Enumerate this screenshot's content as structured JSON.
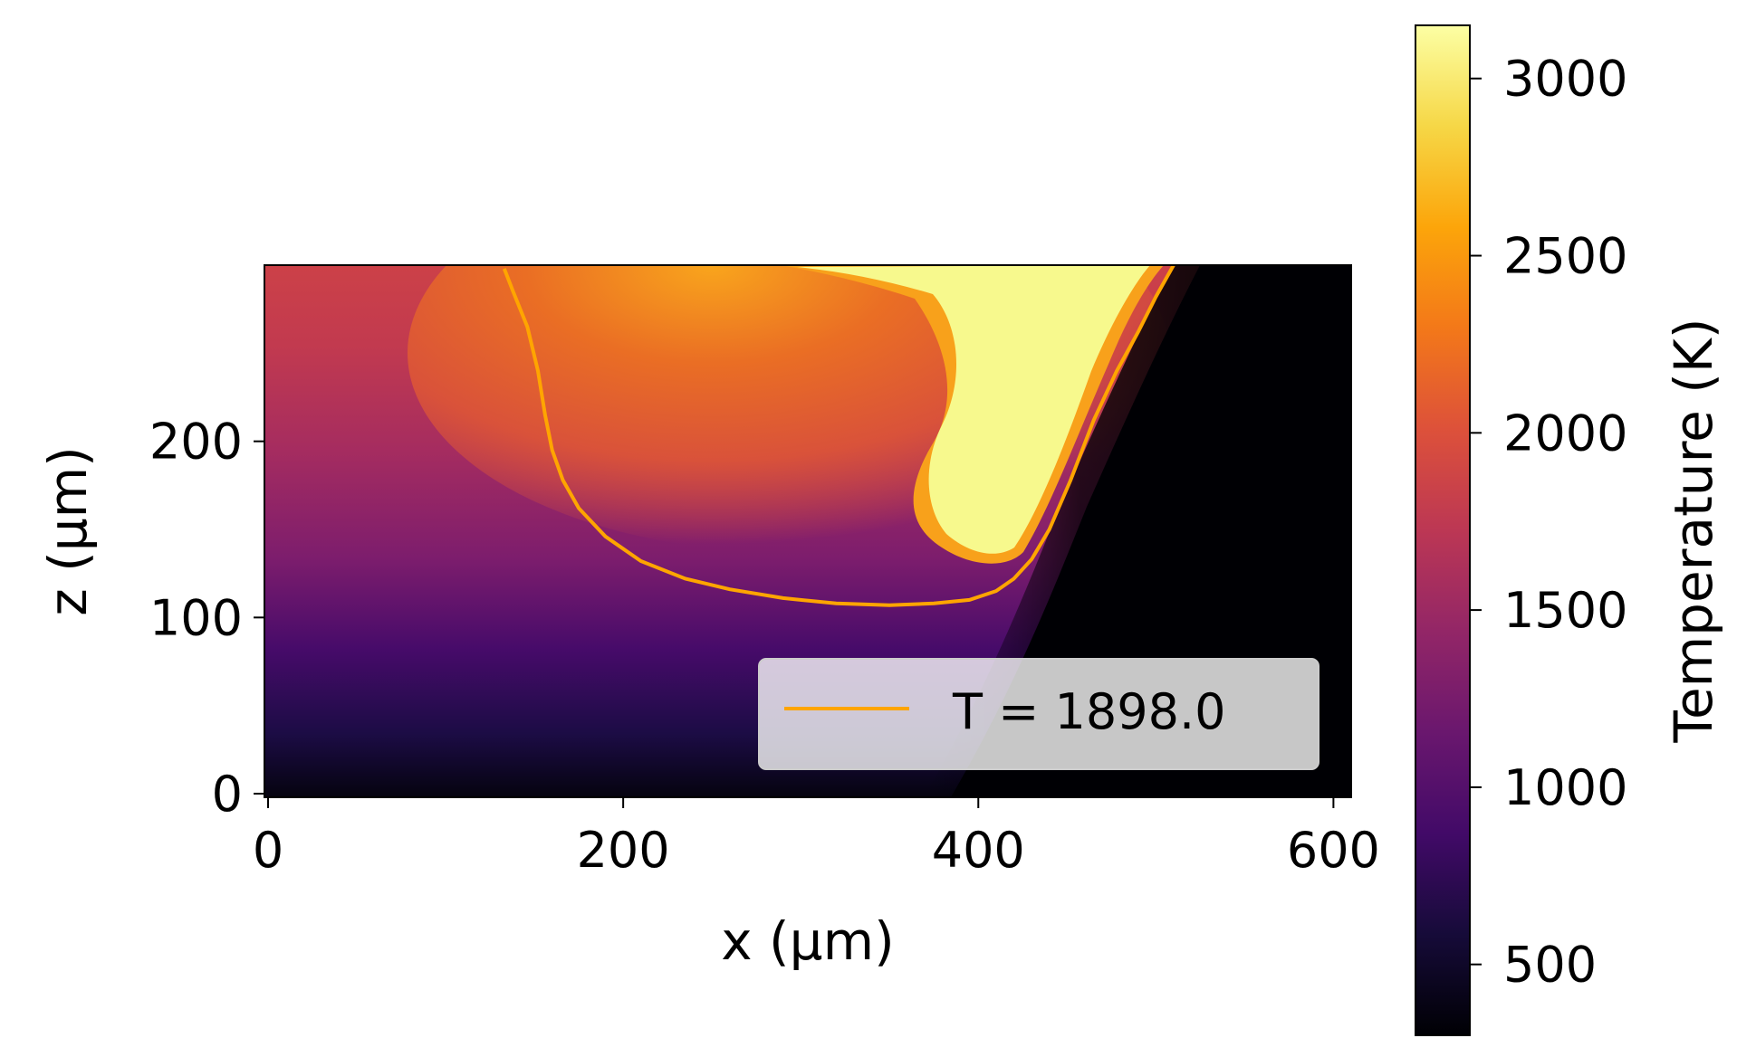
{
  "chart_data": {
    "type": "heatmap",
    "title": "",
    "xlabel": "x (μm)",
    "ylabel": "z (μm)",
    "xlim": [
      0,
      610
    ],
    "ylim": [
      0,
      300
    ],
    "x_ticks": [
      0,
      200,
      400,
      600
    ],
    "y_ticks": [
      0,
      100,
      200
    ],
    "colormap": "inferno",
    "colorbar": {
      "label": "Temperature (K)",
      "range": [
        300,
        3150
      ],
      "ticks": [
        500,
        1000,
        1500,
        2000,
        2500,
        3000
      ]
    },
    "series": [
      {
        "name": "T = 1898.0",
        "kind": "contour",
        "level": 1898.0,
        "color": "#FFA500",
        "x": [
          133,
          138,
          146,
          152,
          156,
          160,
          166,
          175,
          190,
          210,
          235,
          260,
          290,
          320,
          350,
          375,
          395,
          410,
          420,
          430,
          440,
          452,
          465,
          478,
          490,
          500,
          510
        ],
        "y": [
          298,
          285,
          265,
          240,
          215,
          195,
          178,
          162,
          146,
          132,
          122,
          116,
          111,
          108,
          107,
          108,
          110,
          115,
          122,
          133,
          150,
          178,
          212,
          240,
          262,
          282,
          300
        ]
      }
    ],
    "legend": {
      "position": "lower-right",
      "entries": [
        "T = 1898.0"
      ]
    },
    "grid": false
  }
}
